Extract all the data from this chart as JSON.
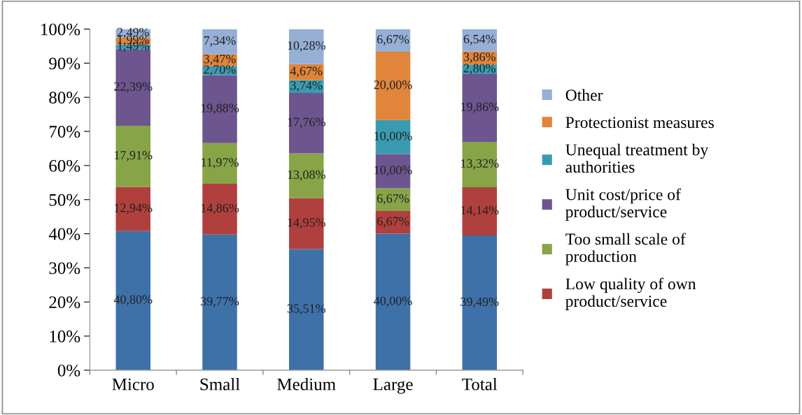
{
  "chart_data": {
    "type": "bar",
    "stacked": true,
    "categories": [
      "Micro",
      "Small",
      "Medium",
      "Large",
      "Total"
    ],
    "series": [
      {
        "color": "#3f71a9",
        "values": [
          40.8,
          39.77,
          35.51,
          40.0,
          39.49
        ],
        "value_labels": [
          "40,80%",
          "39,77%",
          "35,51%",
          "40,00%",
          "39,49%"
        ]
      },
      {
        "name": "Low quality of own\nproduct/service",
        "color": "#b0403d",
        "values": [
          12.94,
          14.86,
          14.95,
          6.67,
          14.14
        ],
        "value_labels": [
          "12,94%",
          "14,86%",
          "14,95%",
          "6,67%",
          "14,14%"
        ]
      },
      {
        "name": "Too small scale of\nproduction",
        "color": "#87a447",
        "values": [
          17.91,
          11.97,
          13.08,
          6.67,
          13.32
        ],
        "value_labels": [
          "17,91%",
          "11,97%",
          "13,08%",
          "6,67%",
          "13,32%"
        ]
      },
      {
        "name": "Unit cost/price of\nproduct/service",
        "color": "#6d558f",
        "values": [
          22.39,
          19.88,
          17.76,
          10.0,
          19.86
        ],
        "value_labels": [
          "22,39%",
          "19,88%",
          "17,76%",
          "10,00%",
          "19,86%"
        ]
      },
      {
        "name": "Unequal treatment by\nauthorities",
        "color": "#3a9bb0",
        "values": [
          1.49,
          2.7,
          3.74,
          10.0,
          2.8
        ],
        "value_labels": [
          "1,49%",
          "2,70%",
          "3,74%",
          "10,00%",
          "2,80%"
        ]
      },
      {
        "name": "Protectionist measures",
        "color": "#e0853a",
        "values": [
          1.99,
          3.47,
          4.67,
          20.0,
          3.86
        ],
        "value_labels": [
          "1,99%",
          "3,47%",
          "4,67%",
          "20,00%",
          "3,86%"
        ]
      },
      {
        "name": "Other",
        "color": "#95afd5",
        "values": [
          2.49,
          7.34,
          10.28,
          6.67,
          6.54
        ],
        "value_labels": [
          "2,49%",
          "7,34%",
          "10,28%",
          "6,67%",
          "6,54%"
        ]
      }
    ],
    "ylim": [
      0,
      100
    ],
    "yticks": [
      {
        "value": 0,
        "label": "0%"
      },
      {
        "value": 10,
        "label": "10%"
      },
      {
        "value": 20,
        "label": "20%"
      },
      {
        "value": 30,
        "label": "30%"
      },
      {
        "value": 40,
        "label": "40%"
      },
      {
        "value": 50,
        "label": "50%"
      },
      {
        "value": 60,
        "label": "60%"
      },
      {
        "value": 70,
        "label": "70%"
      },
      {
        "value": 80,
        "label": "80%"
      },
      {
        "value": 90,
        "label": "90%"
      },
      {
        "value": 100,
        "label": "100%"
      }
    ],
    "grid": false,
    "legend": "right"
  }
}
